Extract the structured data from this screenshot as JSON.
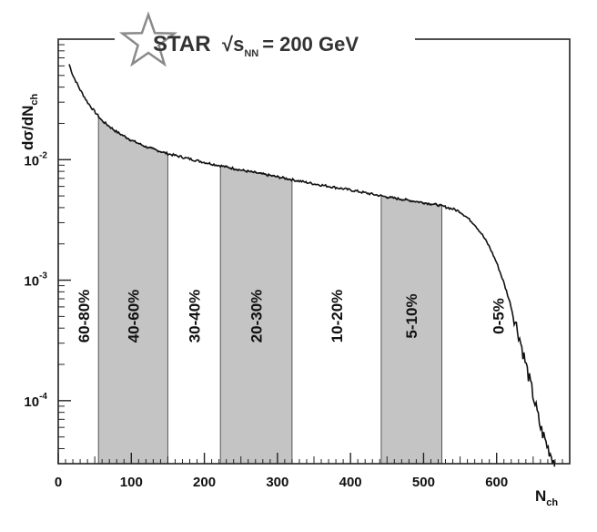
{
  "chart_data": {
    "type": "line",
    "title": {
      "logo": "STAR",
      "energy_prefix": "√s",
      "energy_sub": "NN",
      "energy_value": "= 200 GeV"
    },
    "xlabel": {
      "main": "N",
      "sub": "ch"
    },
    "ylabel": {
      "main": "dσ/dN",
      "sub": "ch"
    },
    "xlim": [
      0,
      700
    ],
    "ylim": [
      3e-05,
      0.1
    ],
    "y_scale": "log",
    "x_ticks": [
      {
        "value": 0,
        "label": "0"
      },
      {
        "value": 100,
        "label": "100"
      },
      {
        "value": 200,
        "label": "200"
      },
      {
        "value": 300,
        "label": "300"
      },
      {
        "value": 400,
        "label": "400"
      },
      {
        "value": 500,
        "label": "500"
      },
      {
        "value": 600,
        "label": "600"
      }
    ],
    "y_ticks": [
      {
        "value": 0.01,
        "base": "10",
        "exp": "-2"
      },
      {
        "value": 0.001,
        "base": "10",
        "exp": "-3"
      },
      {
        "value": 0.0001,
        "base": "10",
        "exp": "-4"
      }
    ],
    "grid": false,
    "series": [
      {
        "x": [
          15,
          20,
          30,
          40,
          50,
          60,
          80,
          100,
          120,
          140,
          150,
          200,
          250,
          300,
          350,
          400,
          450,
          500,
          520,
          540,
          550,
          560,
          570,
          580,
          590,
          600,
          610,
          620,
          630,
          640,
          650,
          660,
          670,
          680
        ],
        "y": [
          0.062,
          0.05,
          0.038,
          0.03,
          0.025,
          0.021,
          0.017,
          0.0145,
          0.0128,
          0.0117,
          0.0112,
          0.0095,
          0.0082,
          0.0072,
          0.0063,
          0.0056,
          0.0049,
          0.0044,
          0.0042,
          0.0039,
          0.0037,
          0.0033,
          0.0029,
          0.0024,
          0.0019,
          0.0014,
          0.00095,
          0.0006,
          0.00036,
          0.0002,
          0.00011,
          6e-05,
          4.1e-05,
          3e-05
        ]
      }
    ],
    "bands": [
      {
        "label": "60-80%",
        "x0": 15,
        "x1": 55,
        "shaded": false
      },
      {
        "label": "40-60%",
        "x0": 55,
        "x1": 150,
        "shaded": true
      },
      {
        "label": "30-40%",
        "x0": 150,
        "x1": 222,
        "shaded": false
      },
      {
        "label": "20-30%",
        "x0": 222,
        "x1": 320,
        "shaded": true
      },
      {
        "label": "10-20%",
        "x0": 320,
        "x1": 442,
        "shaded": false
      },
      {
        "label": "5-10%",
        "x0": 442,
        "x1": 525,
        "shaded": true
      },
      {
        "label": "0-5%",
        "x0": 525,
        "x1": 680,
        "shaded": false
      }
    ],
    "colors": {
      "shade": "#c4c4c4",
      "line": "#111111",
      "logo": "#8a8a8a"
    }
  }
}
